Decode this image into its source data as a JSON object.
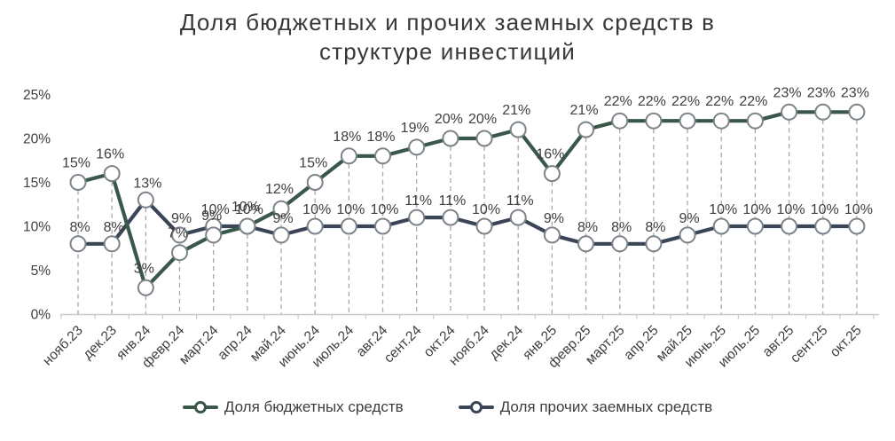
{
  "title": {
    "line1": "Доля бюджетных и прочих заемных средств в",
    "line2": "структуре инвестиций"
  },
  "chart_data": {
    "type": "line",
    "categories": [
      "нояб.23",
      "дек.23",
      "янв.24",
      "февр.24",
      "март.24",
      "апр.24",
      "май.24",
      "июнь.24",
      "июль.24",
      "авг.24",
      "сент.24",
      "окт.24",
      "нояб.24",
      "дек.24",
      "янв.25",
      "февр.25",
      "март.25",
      "апр.25",
      "май.25",
      "июнь.25",
      "июль.25",
      "авг.25",
      "сент.25",
      "окт.25"
    ],
    "series": [
      {
        "name": "Доля бюджетных средств",
        "color": "#39584A",
        "values": [
          15,
          16,
          3,
          7,
          9,
          10,
          12,
          15,
          18,
          18,
          19,
          20,
          20,
          21,
          16,
          21,
          22,
          22,
          22,
          22,
          22,
          23,
          23,
          23
        ]
      },
      {
        "name": "Доля прочих заемных средств",
        "color": "#3A4656",
        "values": [
          8,
          8,
          13,
          9,
          10,
          10,
          9,
          10,
          10,
          10,
          11,
          11,
          10,
          11,
          9,
          8,
          8,
          8,
          9,
          10,
          10,
          10,
          10,
          10
        ]
      }
    ],
    "label_suffix": "%",
    "y_ticks": [
      "0%",
      "5%",
      "10%",
      "15%",
      "20%",
      "25%"
    ],
    "ylim": [
      0,
      25
    ],
    "xlabel": "",
    "ylabel": "",
    "grid": "off",
    "drop_lines": "dashed-vertical",
    "legend_position": "bottom",
    "marker_style": "circle-white-fill-gray-stroke"
  },
  "colors": {
    "marker_stroke": "#7D838A",
    "marker_fill": "#FFFFFF",
    "drop_line": "#A7A7A7",
    "axis_line": "#C8C8C8",
    "text": "#3E3E3E",
    "title_text": "#383838",
    "background": "#FFFFFF"
  }
}
